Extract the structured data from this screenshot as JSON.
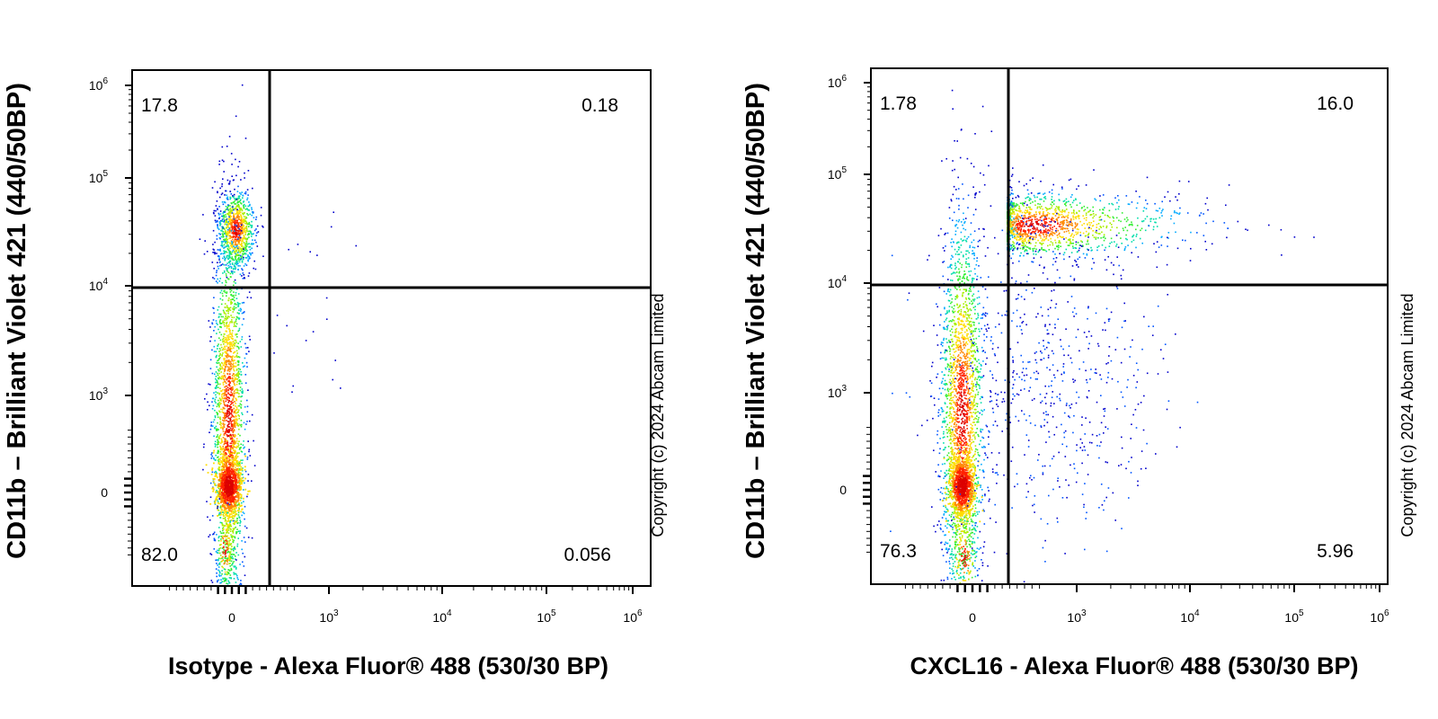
{
  "chart_data": [
    {
      "type": "scatter",
      "subtype": "flow-cytometry-density-plot",
      "xlabel": "Isotype - Alexa Fluor® 488 (530/30 BP)",
      "ylabel": "CD11b – Brilliant Violet 421 (440/50BP)",
      "watermark": "Copyright (c) 2024 Abcam Limited",
      "x_scale": "biexponential",
      "y_scale": "biexponential",
      "x_ticks": [
        "0",
        "10^3",
        "10^4",
        "10^5",
        "10^6"
      ],
      "y_ticks": [
        "0",
        "10^3",
        "10^4",
        "10^5",
        "10^6"
      ],
      "quadrant_gate": {
        "x": 300,
        "y": 9000
      },
      "quadrants": {
        "upper_left": "17.8",
        "upper_right": "0.18",
        "lower_left": "82.0",
        "lower_right": "0.056"
      },
      "populations": [
        {
          "name": "",
          "x_center": 0,
          "y_center": 30000,
          "density": "high"
        },
        {
          "name": "",
          "x_center": 0,
          "y_center": 300,
          "density": "very-high"
        }
      ]
    },
    {
      "type": "scatter",
      "subtype": "flow-cytometry-density-plot",
      "xlabel": "CXCL16 - Alexa Fluor® 488 (530/30 BP)",
      "ylabel": "CD11b – Brilliant Violet 421 (440/50BP)",
      "watermark": "Copyright (c) 2024 Abcam Limited",
      "x_scale": "biexponential",
      "y_scale": "biexponential",
      "x_ticks": [
        "0",
        "10^3",
        "10^4",
        "10^5",
        "10^6"
      ],
      "y_ticks": [
        "0",
        "10^3",
        "10^4",
        "10^5",
        "10^6"
      ],
      "quadrant_gate": {
        "x": 300,
        "y": 9000
      },
      "quadrants": {
        "upper_left": "1.78",
        "upper_right": "16.0",
        "lower_left": "76.3",
        "lower_right": "5.96"
      },
      "populations": [
        {
          "name": "",
          "x_center": 800,
          "y_center": 30000,
          "density": "high"
        },
        {
          "name": "",
          "x_center": 0,
          "y_center": 300,
          "density": "very-high"
        }
      ]
    }
  ],
  "colors": {
    "density_scale": [
      "#0000cc",
      "#0055ff",
      "#00aaff",
      "#00ddaa",
      "#33ee33",
      "#aaee00",
      "#ffdd00",
      "#ff8800",
      "#ff2200",
      "#dd0000"
    ],
    "axis": "#000000",
    "background": "#ffffff"
  }
}
